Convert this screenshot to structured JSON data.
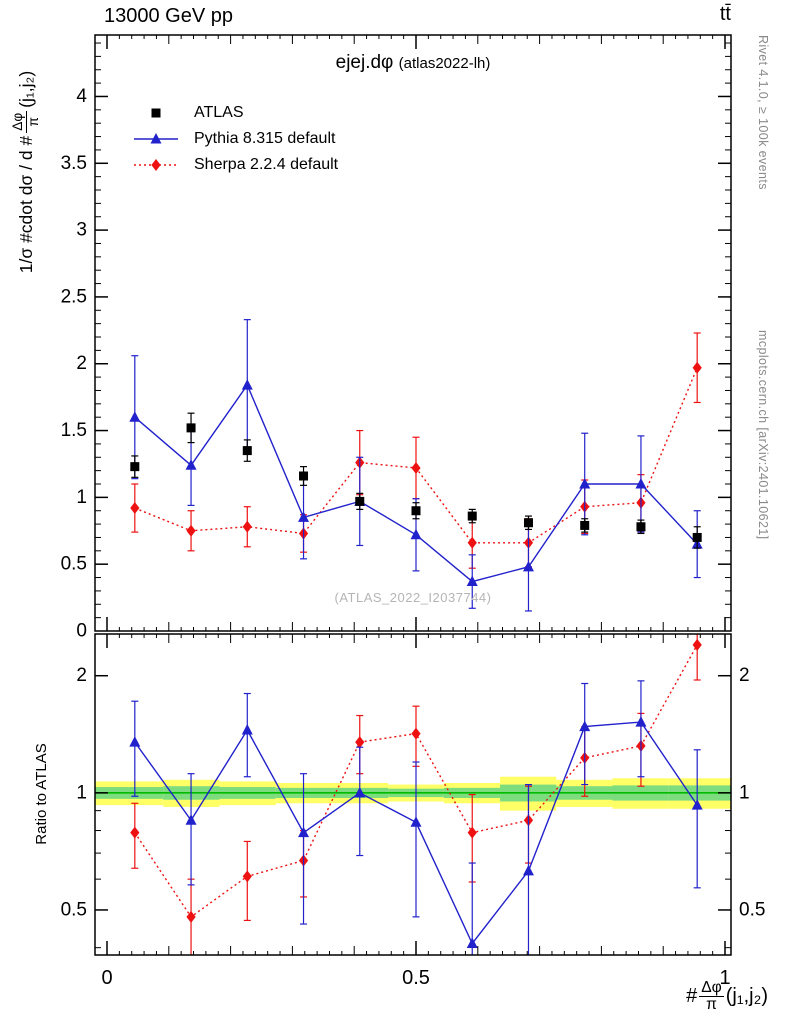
{
  "header": {
    "energy": "13000 GeV pp",
    "process": "tt̄"
  },
  "title": {
    "main": "ejej.dφ",
    "paren": "(atlas2022-lh)"
  },
  "watermark": "(ATLAS_2022_I2037744)",
  "side": {
    "top": "Rivet 4.1.0, ≥ 100k events",
    "bottom": "mcplots.cern.ch [arXiv:2401.10621]"
  },
  "axes": {
    "ylabel_prefix": "1/σ #cdot dσ / d #",
    "frac_top": "Δφ",
    "frac_bottom": "π",
    "ylabel_suffix": "(j₁,j₂)",
    "xlabel_prefix": "#",
    "xlabel_suffix": "(j₁,j₂)",
    "ratio_ylabel": "Ratio to ATLAS"
  },
  "chart_data": {
    "type": "line",
    "title": "ejej.dφ (atlas2022-lh)",
    "xlabel": "#Δφ/π(j1,j2)",
    "ylabel": "1/σ #cdot dσ / d #Δφ/π(j1,j2)",
    "xlim": [
      0,
      1
    ],
    "xticks": [
      0,
      0.5,
      1
    ],
    "bin_edges": [
      0,
      0.091,
      0.182,
      0.273,
      0.364,
      0.455,
      0.545,
      0.636,
      0.727,
      0.818,
      0.909,
      1
    ],
    "x": [
      0.045,
      0.136,
      0.227,
      0.318,
      0.409,
      0.5,
      0.591,
      0.682,
      0.773,
      0.864,
      0.955
    ],
    "main": {
      "ylim": [
        0,
        4.46
      ],
      "ytick_step_major": 0.5,
      "ytick_step_minor": 0.1
    },
    "series": [
      {
        "name": "ATLAS",
        "marker": "square",
        "color": "#000000",
        "line": null,
        "values": [
          1.23,
          1.52,
          1.35,
          1.16,
          0.97,
          0.9,
          0.86,
          0.81,
          0.79,
          0.78,
          0.7
        ],
        "errors": [
          0.08,
          0.11,
          0.08,
          0.07,
          0.06,
          0.06,
          0.05,
          0.05,
          0.05,
          0.05,
          0.08
        ]
      },
      {
        "name": "Pythia 8.315 default",
        "marker": "triangle",
        "color": "#2222cc",
        "line": "solid",
        "values": [
          1.6,
          1.24,
          1.84,
          0.85,
          0.97,
          0.72,
          0.37,
          0.48,
          1.1,
          1.1,
          0.65
        ],
        "errors": [
          0.46,
          0.3,
          0.49,
          0.31,
          0.33,
          0.27,
          0.2,
          0.33,
          0.38,
          0.36,
          0.25
        ]
      },
      {
        "name": "Sherpa 2.2.4 default",
        "marker": "diamond",
        "color": "#ee1111",
        "line": "dotted",
        "values": [
          0.92,
          0.75,
          0.78,
          0.73,
          1.26,
          1.22,
          0.66,
          0.66,
          0.93,
          0.96,
          1.97
        ],
        "errors": [
          0.18,
          0.15,
          0.15,
          0.14,
          0.24,
          0.23,
          0.19,
          0.18,
          0.2,
          0.21,
          0.26
        ]
      }
    ],
    "ratio": {
      "ylabel": "Ratio to ATLAS",
      "scale": "log",
      "ylim": [
        0.383,
        2.56
      ],
      "yticks": [
        0.5,
        1,
        2
      ],
      "yticks_minor": [
        0.4,
        0.6,
        0.7,
        0.8,
        0.9
      ],
      "band_yellow": [
        0.07,
        0.08,
        0.07,
        0.06,
        0.06,
        0.05,
        0.06,
        0.1,
        0.08,
        0.09,
        0.09
      ],
      "band_green": [
        0.035,
        0.04,
        0.035,
        0.03,
        0.03,
        0.025,
        0.03,
        0.05,
        0.04,
        0.045,
        0.045
      ],
      "band_yellow_color": "#ffff66",
      "band_green_color": "#7ddc7d",
      "line_color": "#00bb00",
      "series": [
        {
          "name": "Pythia 8.315 default",
          "marker": "triangle",
          "color": "#2222cc",
          "line": "solid",
          "values": [
            1.35,
            0.85,
            1.45,
            0.79,
            1.0,
            0.84,
            0.41,
            0.63,
            1.48,
            1.52,
            0.93
          ],
          "errors": [
            0.37,
            0.27,
            0.35,
            0.33,
            0.31,
            0.36,
            0.25,
            0.42,
            0.43,
            0.42,
            0.36
          ]
        },
        {
          "name": "Sherpa 2.2.4 default",
          "marker": "diamond",
          "color": "#ee1111",
          "line": "dotted",
          "values": [
            0.79,
            0.48,
            0.61,
            0.67,
            1.35,
            1.42,
            0.79,
            0.85,
            1.23,
            1.32,
            2.4
          ],
          "errors": [
            0.15,
            0.12,
            0.14,
            0.13,
            0.23,
            0.25,
            0.2,
            0.19,
            0.25,
            0.28,
            0.45
          ]
        }
      ]
    }
  }
}
